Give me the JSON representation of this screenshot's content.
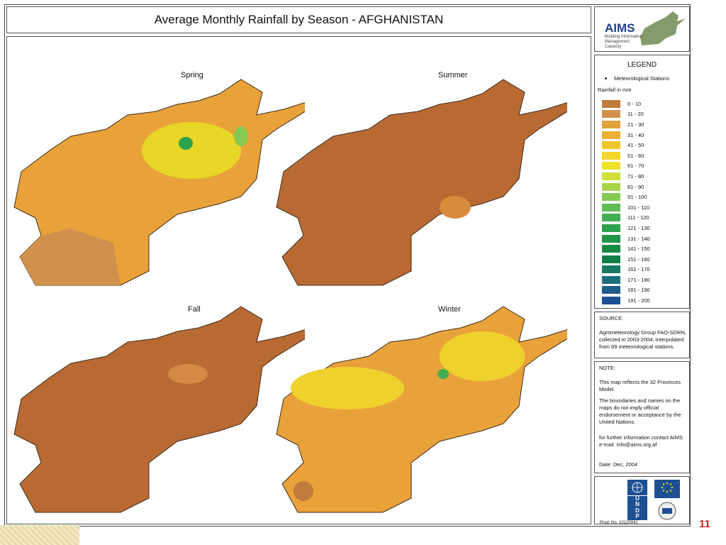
{
  "title": "Average Monthly Rainfall by Season - AFGHANISTAN",
  "maps": [
    {
      "season": "Spring",
      "base_color": "#e9a23a",
      "highlight_color": "#e8d726"
    },
    {
      "season": "Summer",
      "base_color": "#b96a32",
      "highlight_color": "#d98b3c"
    },
    {
      "season": "Fall",
      "base_color": "#b96a32",
      "highlight_color": "#d48a44"
    },
    {
      "season": "Winter",
      "base_color": "#e9a23a",
      "highlight_color": "#efd12e"
    }
  ],
  "logo": {
    "name": "AIMS",
    "tagline": "Building Information Management Capacity"
  },
  "legend": {
    "title": "LEGEND",
    "station_label": "Meteorological Stations",
    "rainfall_title": "Rainfall in mm",
    "items": [
      {
        "label": "0 - 10",
        "color": "#c07a3d"
      },
      {
        "label": "11 - 20",
        "color": "#d2914a"
      },
      {
        "label": "21 - 30",
        "color": "#e1a240"
      },
      {
        "label": "31 - 40",
        "color": "#ecb134"
      },
      {
        "label": "41 - 50",
        "color": "#f1c62a"
      },
      {
        "label": "51 - 60",
        "color": "#f4d724"
      },
      {
        "label": "61 - 70",
        "color": "#ede42a"
      },
      {
        "label": "71 - 80",
        "color": "#cfe03a"
      },
      {
        "label": "81 - 90",
        "color": "#a9d44a"
      },
      {
        "label": "91 - 100",
        "color": "#86c852"
      },
      {
        "label": "101 - 110",
        "color": "#5fbc55"
      },
      {
        "label": "111 - 120",
        "color": "#42af52"
      },
      {
        "label": "121 - 130",
        "color": "#2ea24f"
      },
      {
        "label": "131 - 140",
        "color": "#20954b"
      },
      {
        "label": "141 - 150",
        "color": "#178a48"
      },
      {
        "label": "151 - 160",
        "color": "#107f46"
      },
      {
        "label": "161 - 170",
        "color": "#167a63"
      },
      {
        "label": "171 - 180",
        "color": "#1d6f7c"
      },
      {
        "label": "181 - 190",
        "color": "#215d8a"
      },
      {
        "label": "191 - 200",
        "color": "#1d4f92"
      }
    ]
  },
  "source": {
    "heading": "SOURCE:",
    "text": "Agrometeorology Group FAO-SDRN, collected in 2003-2004, Interpolated from 69 meteorological stations."
  },
  "note": {
    "heading": "NOTE:",
    "p1": "This map reflects the 32 Provinces Model.",
    "p2": "The boundaries and names on the maps do not imply official endorsement or acceptance by the United Nations.",
    "p3": "for further information contact AIMS e-mail: info@aims.org.af",
    "date": "Date: Dec, 2004"
  },
  "donors": {
    "undp": "UNDP"
  },
  "reference": "Prod. No. 10120041",
  "page_number": "11"
}
